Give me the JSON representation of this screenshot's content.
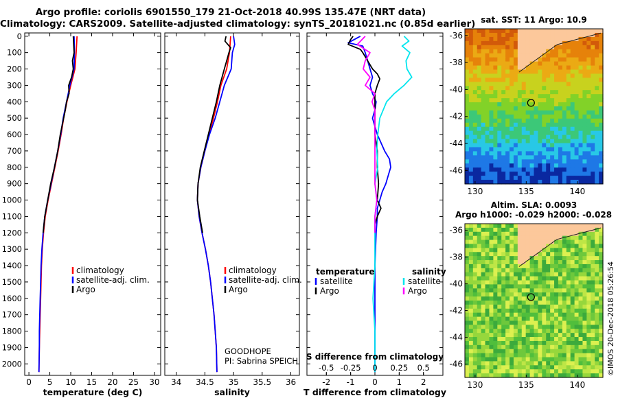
{
  "title": {
    "line1": "Argo profile: coriolis 6901550_179 21-Oct-2018 40.99S 135.47E (NRT data)",
    "line2": "Climatology: CARS2009. Satellite-adjusted climatology: synTS_20181021.nc (0.85d earlier)"
  },
  "colors": {
    "climatology": "#ff0000",
    "satellite": "#0000ff",
    "argo": "#000000",
    "satellite_s": "#00e5ee",
    "argo_s": "#ff00ff"
  },
  "depth_ticks": [
    "0",
    "100",
    "200",
    "300",
    "400",
    "500",
    "600",
    "700",
    "800",
    "900",
    "1000",
    "1100",
    "1200",
    "1300",
    "1400",
    "1500",
    "1600",
    "1700",
    "1800",
    "1900",
    "2000"
  ],
  "chart_data": [
    {
      "type": "line",
      "name": "temperature",
      "xlabel": "temperature (deg C)",
      "ylabel": "depth",
      "xlim": [
        -1,
        31.5
      ],
      "ylim": [
        2070,
        -20
      ],
      "xticks": [
        "0",
        "5",
        "10",
        "15",
        "20",
        "25",
        "30"
      ],
      "xtick_values": [
        0,
        5,
        10,
        15,
        20,
        25,
        30
      ],
      "legend": [
        "climatology",
        "satellite-adj. clim.",
        "Argo"
      ],
      "series": [
        {
          "name": "climatology",
          "color": "#ff0000",
          "depth": [
            0,
            100,
            200,
            250,
            300,
            400,
            500,
            600,
            700,
            800,
            900,
            1000,
            1100,
            1200,
            1300,
            1400,
            1500,
            1600,
            1700,
            1800,
            1900,
            2050
          ],
          "values": [
            11.5,
            11.3,
            11.0,
            10.5,
            10.0,
            9.1,
            8.3,
            7.7,
            7.0,
            6.2,
            5.4,
            4.6,
            3.9,
            3.5,
            3.2,
            3.0,
            2.9,
            2.8,
            2.7,
            2.6,
            2.5,
            2.4
          ]
        },
        {
          "name": "satellite-adj. clim.",
          "color": "#0000ff",
          "depth": [
            0,
            100,
            200,
            250,
            300,
            400,
            500,
            600,
            700,
            800,
            900,
            1000,
            1100,
            1200,
            1300,
            1400,
            1500,
            1600,
            1700,
            1800,
            1900,
            2050
          ],
          "values": [
            10.8,
            10.9,
            10.8,
            10.3,
            9.8,
            9.0,
            8.2,
            7.6,
            6.9,
            6.1,
            5.3,
            4.5,
            3.8,
            3.4,
            3.1,
            2.9,
            2.8,
            2.7,
            2.6,
            2.5,
            2.5,
            2.4
          ]
        },
        {
          "name": "Argo",
          "color": "#000000",
          "depth": [
            0,
            50,
            100,
            150,
            200,
            250,
            300,
            350,
            400,
            450,
            500,
            600,
            700,
            800,
            900,
            1000,
            1100,
            1200
          ],
          "values": [
            10.6,
            10.7,
            10.8,
            10.4,
            10.6,
            10.2,
            9.5,
            9.6,
            9.0,
            8.7,
            8.3,
            7.5,
            6.9,
            6.1,
            5.2,
            4.5,
            3.8,
            3.4
          ]
        }
      ]
    },
    {
      "type": "line",
      "name": "salinity",
      "xlabel": "salinity",
      "ylabel": "depth",
      "xlim": [
        33.8,
        36.15
      ],
      "ylim": [
        2070,
        -20
      ],
      "xticks": [
        "34",
        "34.5",
        "35",
        "35.5",
        "36"
      ],
      "xtick_values": [
        34,
        34.5,
        35,
        35.5,
        36
      ],
      "legend": [
        "climatology",
        "satellite-adj. clim.",
        "Argo"
      ],
      "annotations": [
        "GOODHOPE",
        "PI: Sabrina SPEICH"
      ],
      "series": [
        {
          "name": "climatology",
          "color": "#ff0000",
          "depth": [
            0,
            100,
            200,
            300,
            400,
            500,
            600,
            700,
            800,
            900,
            1000,
            1100,
            1200,
            1300,
            1400,
            1500,
            1600,
            1700,
            1800,
            1900,
            2050
          ],
          "values": [
            34.95,
            34.93,
            34.88,
            34.78,
            34.72,
            34.65,
            34.57,
            34.5,
            34.43,
            34.38,
            34.37,
            34.4,
            34.45,
            34.51,
            34.56,
            34.6,
            34.63,
            34.66,
            34.68,
            34.7,
            34.71
          ]
        },
        {
          "name": "satellite-adj. clim.",
          "color": "#0000ff",
          "depth": [
            0,
            50,
            100,
            200,
            250,
            300,
            400,
            500,
            600,
            700,
            800,
            900,
            1000,
            1100,
            1200,
            1300,
            1400,
            1500,
            1600,
            1700,
            1800,
            1900,
            2050
          ],
          "values": [
            35.0,
            35.02,
            34.98,
            34.96,
            34.9,
            34.84,
            34.76,
            34.68,
            34.58,
            34.5,
            34.43,
            34.38,
            34.37,
            34.4,
            34.45,
            34.51,
            34.56,
            34.6,
            34.63,
            34.66,
            34.68,
            34.7,
            34.71
          ]
        },
        {
          "name": "Argo",
          "color": "#000000",
          "depth": [
            0,
            30,
            50,
            70,
            100,
            150,
            200,
            250,
            300,
            400,
            500,
            600,
            700,
            800,
            900,
            1000,
            1100,
            1200
          ],
          "values": [
            34.87,
            34.85,
            34.9,
            34.95,
            34.92,
            34.88,
            34.84,
            34.8,
            34.76,
            34.7,
            34.63,
            34.56,
            34.49,
            34.42,
            34.38,
            34.37,
            34.41,
            34.46
          ]
        }
      ]
    },
    {
      "type": "line",
      "name": "difference",
      "xlabel": "T difference from climatology",
      "xlabel2": "S difference from climatology",
      "xlim": [
        -2.8,
        2.8
      ],
      "ylim": [
        2070,
        -20
      ],
      "xticks": [
        "-2",
        "-1",
        "0",
        "1",
        "2"
      ],
      "xtick_values": [
        -2,
        -1,
        0,
        1,
        2
      ],
      "xticks2": [
        "-0.5",
        "-0.25",
        "0",
        "0.25",
        "0.5"
      ],
      "xtick2_values": [
        -0.5,
        -0.25,
        0,
        0.25,
        0.5
      ],
      "legend_t": {
        "title": "temperature",
        "items": [
          "satellite",
          "Argo"
        ]
      },
      "legend_s": {
        "title": "salinity",
        "items": [
          "satellite",
          "Argo"
        ]
      },
      "series": [
        {
          "name": "T satellite",
          "color": "#0000ff",
          "depth": [
            0,
            40,
            60,
            100,
            150,
            200,
            250,
            300,
            350,
            400,
            450,
            500,
            600,
            700,
            750,
            800,
            850,
            900,
            950,
            1000,
            1050,
            1100,
            1200,
            1400,
            1600,
            1800,
            2050
          ],
          "values": [
            -0.6,
            -1.1,
            -0.5,
            -0.4,
            -0.3,
            -0.2,
            -0.1,
            -0.2,
            -0.1,
            0.05,
            0.0,
            -0.1,
            0.1,
            0.4,
            0.6,
            0.65,
            0.55,
            0.45,
            0.3,
            0.2,
            0.1,
            0.1,
            0.05,
            0.0,
            0.0,
            0.0,
            0.0
          ]
        },
        {
          "name": "T Argo",
          "color": "#000000",
          "depth": [
            0,
            20,
            50,
            80,
            100,
            150,
            200,
            230,
            260,
            300,
            350,
            400,
            500,
            600,
            700,
            800,
            900,
            1000,
            1050,
            1100,
            1150,
            1200
          ],
          "values": [
            -0.9,
            -1.0,
            -1.1,
            -0.6,
            -0.5,
            -0.3,
            -0.1,
            0.1,
            0.2,
            0.1,
            0.0,
            0.0,
            0.0,
            0.0,
            0.1,
            0.1,
            0.15,
            0.1,
            0.25,
            0.1,
            0.0,
            0.0
          ]
        },
        {
          "name": "S satellite",
          "color": "#00e5ee",
          "depth": [
            0,
            30,
            60,
            100,
            150,
            200,
            250,
            300,
            350,
            400,
            500,
            600,
            700,
            800,
            900,
            1000,
            1100,
            1200,
            1400,
            1600,
            1800,
            2050
          ],
          "values": [
            0.3,
            0.35,
            0.28,
            0.36,
            0.32,
            0.33,
            0.38,
            0.3,
            0.2,
            0.12,
            0.05,
            0.03,
            0.02,
            0.03,
            0.0,
            0.02,
            0.0,
            0.0,
            0.0,
            -0.02,
            0.0,
            0.0
          ]
        },
        {
          "name": "S Argo",
          "color": "#ff00ff",
          "depth": [
            0,
            50,
            100,
            150,
            200,
            250,
            300,
            350,
            400,
            450,
            500,
            600,
            700,
            800,
            900,
            1000,
            1100,
            1200
          ],
          "values": [
            -0.1,
            -0.18,
            -0.05,
            -0.1,
            -0.12,
            -0.05,
            -0.1,
            0.0,
            -0.03,
            0.0,
            0.0,
            0.0,
            0.0,
            0.0,
            0.0,
            0.02,
            0.0,
            0.0
          ]
        }
      ]
    },
    {
      "type": "heatmap",
      "name": "sst_map",
      "title": "sat. SST: 11 Argo: 10.9",
      "xlim": [
        129,
        142.5
      ],
      "ylim": [
        -47,
        -35.5
      ],
      "xticks": [
        "130",
        "135",
        "140"
      ],
      "xtick_values": [
        130,
        135,
        140
      ],
      "yticks": [
        "-36",
        "-38",
        "-40",
        "-42",
        "-44",
        "-46"
      ],
      "ytick_values": [
        -36,
        -38,
        -40,
        -42,
        -44,
        -46
      ],
      "marker": {
        "lon": 135.47,
        "lat": -40.99
      }
    },
    {
      "type": "heatmap",
      "name": "sla_map",
      "title": "Altim. SLA: 0.0093",
      "subtitle": "Argo h1000: -0.029 h2000: -0.028",
      "xlim": [
        129,
        142.5
      ],
      "ylim": [
        -47,
        -35.5
      ],
      "xticks": [
        "130",
        "135",
        "140"
      ],
      "xtick_values": [
        130,
        135,
        140
      ],
      "yticks": [
        "-36",
        "-38",
        "-40",
        "-42",
        "-44",
        "-46"
      ],
      "ytick_values": [
        -36,
        -38,
        -40,
        -42,
        -44,
        -46
      ],
      "marker": {
        "lon": 135.47,
        "lat": -40.99
      }
    }
  ],
  "credit": "©IMOS 20-Dec-2018 05:26:54"
}
